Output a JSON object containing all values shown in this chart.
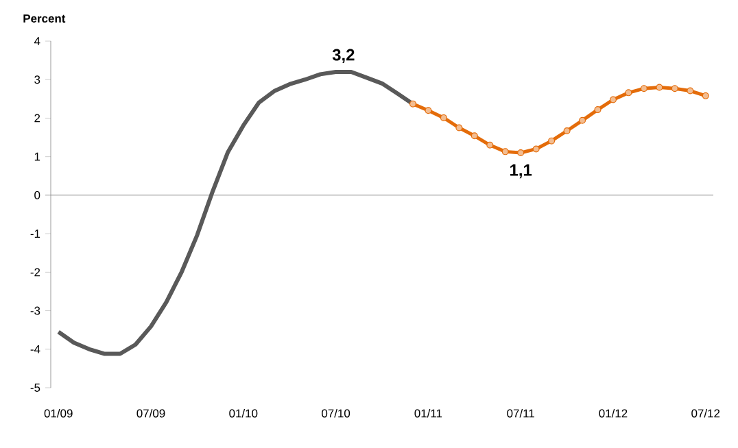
{
  "chart_data": {
    "type": "line",
    "ylabel": "Percent",
    "categories": [
      "01/09",
      null,
      null,
      null,
      null,
      null,
      "07/09",
      null,
      null,
      null,
      null,
      null,
      "01/10",
      null,
      null,
      null,
      null,
      null,
      "07/10",
      null,
      null,
      null,
      null,
      null,
      "01/11",
      null,
      null,
      null,
      null,
      null,
      "07/11",
      null,
      null,
      null,
      null,
      null,
      "01/12",
      null,
      null,
      null,
      null,
      null,
      "07/12"
    ],
    "series": [
      {
        "color": "#595959",
        "marker": "none",
        "values": [
          -3.55,
          -3.83,
          -4.0,
          -4.12,
          -4.12,
          -3.88,
          -3.41,
          -2.78,
          -1.99,
          -1.04,
          0.09,
          1.12,
          1.81,
          2.4,
          2.7,
          2.88,
          3.0,
          3.14,
          3.2,
          3.2,
          3.05,
          2.9,
          2.64,
          2.37,
          null,
          null,
          null,
          null,
          null,
          null,
          null,
          null,
          null,
          null,
          null,
          null,
          null,
          null,
          null,
          null,
          null,
          null,
          null
        ]
      },
      {
        "color": "#e46c0a",
        "marker": "circle",
        "values": [
          null,
          null,
          null,
          null,
          null,
          null,
          null,
          null,
          null,
          null,
          null,
          null,
          null,
          null,
          null,
          null,
          null,
          null,
          null,
          null,
          null,
          null,
          null,
          2.37,
          2.2,
          2.01,
          1.75,
          1.54,
          1.3,
          1.13,
          1.1,
          1.2,
          1.41,
          1.67,
          1.94,
          2.22,
          2.48,
          2.66,
          2.77,
          2.8,
          2.77,
          2.71,
          2.58
        ]
      }
    ],
    "ylim": [
      -5,
      4
    ],
    "yticks": [
      -5,
      -4,
      -3,
      -2,
      -1,
      0,
      1,
      2,
      3,
      4
    ],
    "annotations": [
      {
        "text": "3,2",
        "x": "07/10",
        "y": 3.2
      },
      {
        "text": "1,1",
        "x": "07/11",
        "y": 1.1
      }
    ]
  }
}
